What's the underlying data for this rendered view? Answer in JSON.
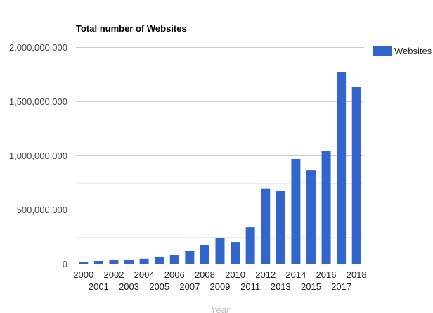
{
  "chart_data": {
    "type": "bar",
    "title": "Total number of Websites",
    "xlabel": "Year",
    "ylabel": "",
    "ylim": [
      0,
      2000000000
    ],
    "yticks": [
      0,
      500000000,
      1000000000,
      1500000000,
      2000000000
    ],
    "ytick_labels": [
      "0",
      "500,000,000",
      "1,000,000,000",
      "1,500,000,000",
      "2,000,000,000"
    ],
    "grid": true,
    "legend_position": "right",
    "categories": [
      "2000",
      "2001",
      "2002",
      "2003",
      "2004",
      "2005",
      "2006",
      "2007",
      "2008",
      "2009",
      "2010",
      "2011",
      "2012",
      "2013",
      "2014",
      "2015",
      "2016",
      "2017",
      "2018"
    ],
    "series": [
      {
        "name": "Websites",
        "color": "#3366cc",
        "values": [
          15000000,
          26000000,
          34000000,
          35000000,
          47000000,
          60000000,
          80000000,
          117000000,
          169000000,
          234000000,
          201000000,
          337000000,
          697000000,
          673000000,
          968000000,
          863000000,
          1045000000,
          1767000000,
          1630000000
        ]
      }
    ]
  }
}
